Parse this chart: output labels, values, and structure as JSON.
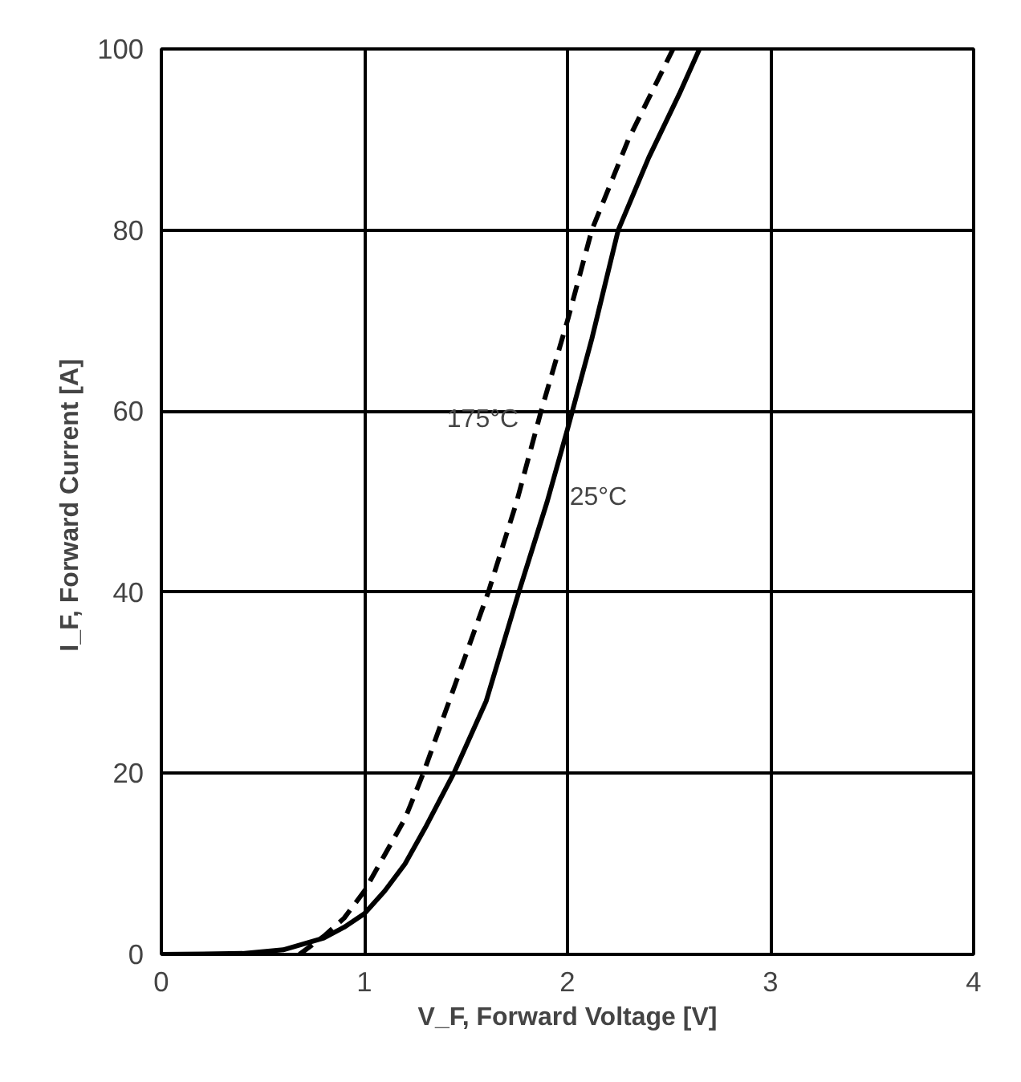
{
  "chart_data": {
    "type": "line",
    "xlabel": "V_F, Forward Voltage [V]",
    "ylabel": "I_F, Forward Current  [A]",
    "xlim": [
      0,
      4
    ],
    "ylim": [
      0,
      100
    ],
    "xticks": [
      0,
      1,
      2,
      3,
      4
    ],
    "yticks": [
      0,
      20,
      40,
      60,
      80,
      100
    ],
    "grid": true,
    "legend": false,
    "series": [
      {
        "name": "25°C",
        "color": "#000000",
        "line_style": "solid",
        "x": [
          0,
          0.4,
          0.6,
          0.8,
          0.9,
          1.0,
          1.1,
          1.2,
          1.3,
          1.44,
          1.6,
          1.76,
          1.9,
          2.0,
          2.12,
          2.25,
          2.4,
          2.55,
          2.65
        ],
        "values": [
          0,
          0.1,
          0.5,
          1.8,
          3,
          4.5,
          7,
          10,
          14,
          20,
          28,
          40,
          50,
          58,
          68,
          80,
          88,
          95,
          100
        ]
      },
      {
        "name": "175°C",
        "color": "#000000",
        "line_style": "dashed",
        "x": [
          0.68,
          0.8,
          0.9,
          1.0,
          1.1,
          1.2,
          1.29,
          1.45,
          1.61,
          1.75,
          1.87,
          2.0,
          2.12,
          2.3,
          2.52
        ],
        "values": [
          0,
          2,
          4,
          7,
          11,
          15,
          20,
          30,
          40,
          50,
          60,
          70,
          80,
          90,
          100
        ]
      }
    ]
  }
}
